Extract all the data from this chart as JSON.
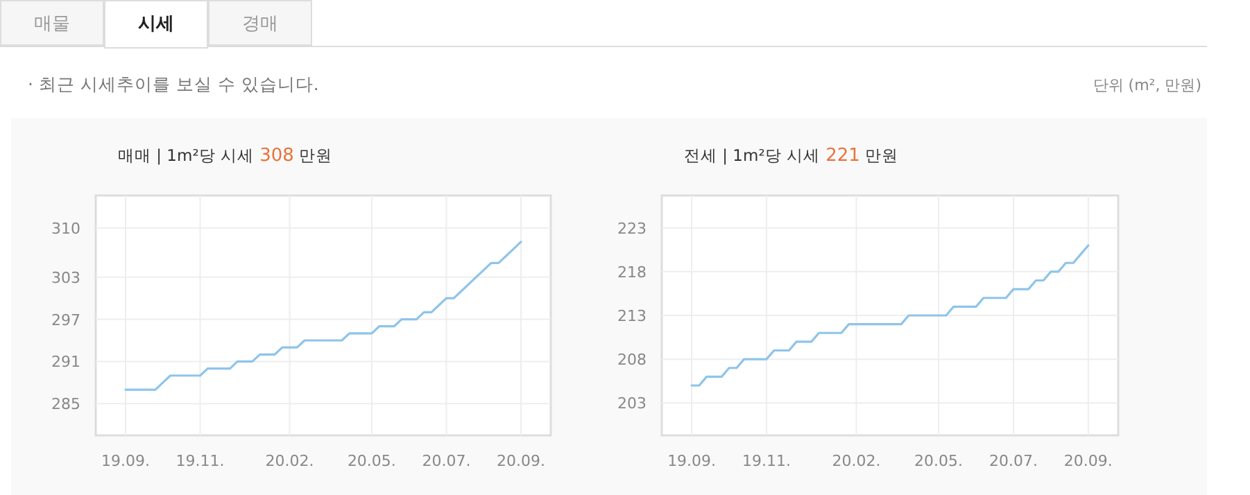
{
  "chart_data": [
    {
      "type": "other",
      "annotations": [
        "매물",
        "시세",
        "경매",
        "· 최근 시세추이를 보실 수 있습니다.",
        "단위 (m², 만원)"
      ]
    },
    {
      "type": "line",
      "title": "매매 | 1m²당 시세 308 만원",
      "color": "#8ec4ea",
      "grid": true,
      "categories": [
        "19.09.",
        null,
        null,
        null,
        null,
        null,
        null,
        null,
        null,
        null,
        "19.11.",
        null,
        null,
        null,
        null,
        null,
        null,
        null,
        null,
        null,
        null,
        null,
        "20.02.",
        null,
        null,
        null,
        null,
        null,
        null,
        null,
        null,
        null,
        null,
        "20.05.",
        null,
        null,
        null,
        null,
        null,
        null,
        null,
        null,
        null,
        "20.07.",
        null,
        null,
        null,
        null,
        null,
        null,
        null,
        null,
        null,
        "20.09."
      ],
      "values": [
        287,
        287,
        287,
        287,
        287,
        288,
        289,
        289,
        289,
        289,
        289,
        290,
        290,
        290,
        290,
        291,
        291,
        291,
        292,
        292,
        292,
        293,
        293,
        293,
        294,
        294,
        294,
        294,
        294,
        294,
        295,
        295,
        295,
        295,
        296,
        296,
        296,
        297,
        297,
        297,
        298,
        298,
        299,
        300,
        300,
        301,
        302,
        303,
        304,
        305,
        305,
        306,
        307,
        308
      ],
      "ylim": [
        280.5,
        314.6
      ],
      "yticks": [
        285,
        291,
        297,
        303,
        310
      ]
    },
    {
      "type": "line",
      "title": "전세 | 1m²당 시세 221 만원",
      "color": "#8ec4ea",
      "grid": true,
      "categories": [
        "19.09.",
        null,
        null,
        null,
        null,
        null,
        null,
        null,
        null,
        null,
        "19.11.",
        null,
        null,
        null,
        null,
        null,
        null,
        null,
        null,
        null,
        null,
        null,
        "20.02.",
        null,
        null,
        null,
        null,
        null,
        null,
        null,
        null,
        null,
        null,
        "20.05.",
        null,
        null,
        null,
        null,
        null,
        null,
        null,
        null,
        null,
        "20.07.",
        null,
        null,
        null,
        null,
        null,
        null,
        null,
        null,
        null,
        "20.09."
      ],
      "values": [
        205,
        205,
        206,
        206,
        206,
        207,
        207,
        208,
        208,
        208,
        208,
        209,
        209,
        209,
        210,
        210,
        210,
        211,
        211,
        211,
        211,
        212,
        212,
        212,
        212,
        212,
        212,
        212,
        212,
        213,
        213,
        213,
        213,
        213,
        213,
        214,
        214,
        214,
        214,
        215,
        215,
        215,
        215,
        216,
        216,
        216,
        217,
        217,
        218,
        218,
        219,
        219,
        220,
        221
      ],
      "ylim": [
        199.3,
        226.7
      ],
      "yticks": [
        203,
        208,
        213,
        218,
        223
      ]
    }
  ]
}
